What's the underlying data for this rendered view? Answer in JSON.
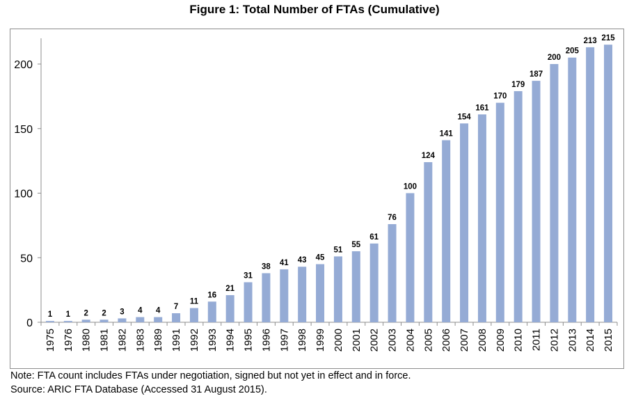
{
  "title": "Figure 1: Total Number of FTAs (Cumulative)",
  "notes": {
    "note": "Note: FTA count includes FTAs under negotiation, signed but not yet in effect and in force.",
    "source": "Source: ARIC FTA Database (Accessed 31 August 2015)."
  },
  "chart_data": {
    "type": "bar",
    "title": "Figure 1: Total Number of FTAs (Cumulative)",
    "xlabel": "",
    "ylabel": "",
    "categories": [
      "1975",
      "1976",
      "1980",
      "1981",
      "1982",
      "1983",
      "1989",
      "1991",
      "1992",
      "1993",
      "1994",
      "1995",
      "1996",
      "1997",
      "1998",
      "1999",
      "2000",
      "2001",
      "2002",
      "2003",
      "2004",
      "2005",
      "2006",
      "2007",
      "2008",
      "2009",
      "2010",
      "2011",
      "2012",
      "2013",
      "2014",
      "2015"
    ],
    "values": [
      1,
      1,
      2,
      2,
      3,
      4,
      4,
      7,
      11,
      16,
      21,
      31,
      38,
      41,
      43,
      45,
      51,
      55,
      61,
      76,
      100,
      124,
      141,
      154,
      161,
      170,
      179,
      187,
      200,
      205,
      213,
      215
    ],
    "ylim": [
      0,
      220
    ],
    "yticks": [
      0,
      50,
      100,
      150,
      200
    ],
    "data_labels": true,
    "grid": false,
    "legend": "none",
    "bar_color": "#95abd5"
  }
}
